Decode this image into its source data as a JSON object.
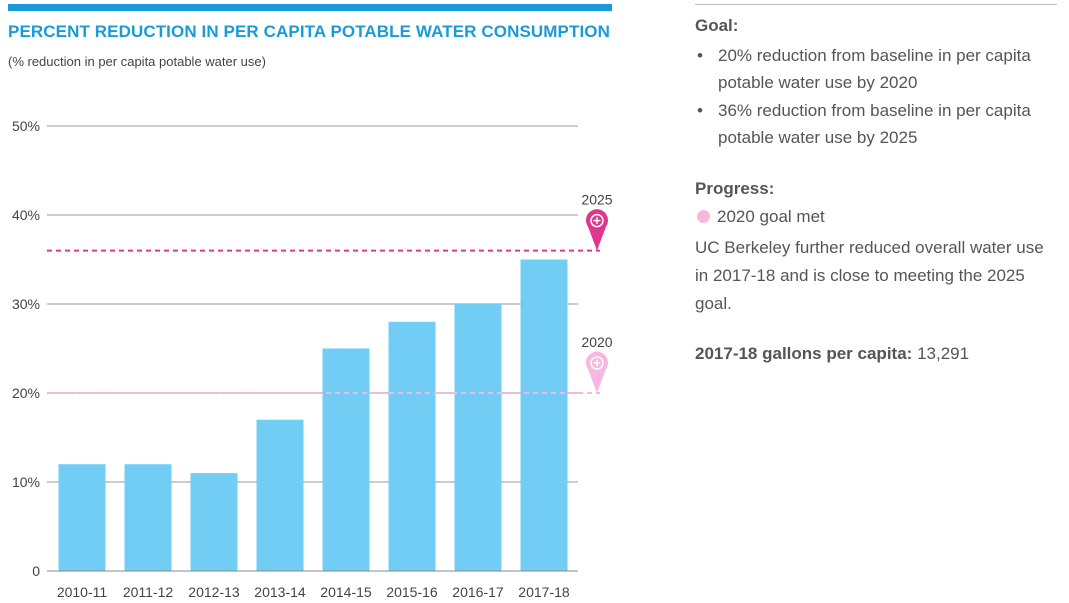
{
  "chart_panel": {
    "title": "PERCENT REDUCTION IN PER CAPITA POTABLE WATER CONSUMPTION",
    "subtitle": "(% reduction in per capita potable water use)"
  },
  "chart_data": {
    "type": "bar",
    "title": "PERCENT REDUCTION IN PER CAPITA POTABLE WATER CONSUMPTION",
    "subtitle": "(% reduction in per capita potable water use)",
    "categories": [
      "2010-11",
      "2011-12",
      "2012-13",
      "2013-14",
      "2014-15",
      "2015-16",
      "2016-17",
      "2017-18"
    ],
    "values": [
      12,
      12,
      11,
      17,
      25,
      28,
      30,
      35
    ],
    "ylim": [
      0,
      50
    ],
    "yticks": [
      0,
      10,
      20,
      30,
      40,
      50
    ],
    "ytick_labels": [
      "0",
      "10%",
      "20%",
      "30%",
      "40%",
      "50%"
    ],
    "grid": true,
    "bar_color": "#72cdf4",
    "reference_lines": [
      {
        "label": "2025",
        "value": 36,
        "color": "#e0368d",
        "style": "dashed"
      },
      {
        "label": "2020",
        "value": 20,
        "color": "#f6b8e0",
        "style": "dashed"
      }
    ]
  },
  "info": {
    "goal_heading": "Goal:",
    "goals": [
      "20% reduction from baseline in per capita potable water use by 2020",
      "36% reduction from baseline in per capita potable water use by 2025"
    ],
    "bullet": "•",
    "progress_heading": "Progress:",
    "progress_status": "2020 goal met",
    "progress_text": "UC Berkeley further reduced overall water use in 2017-18 and is close to meeting the 2025 goal.",
    "gallons_label": "2017-18 gallons per capita:",
    "gallons_value": "13,291"
  }
}
